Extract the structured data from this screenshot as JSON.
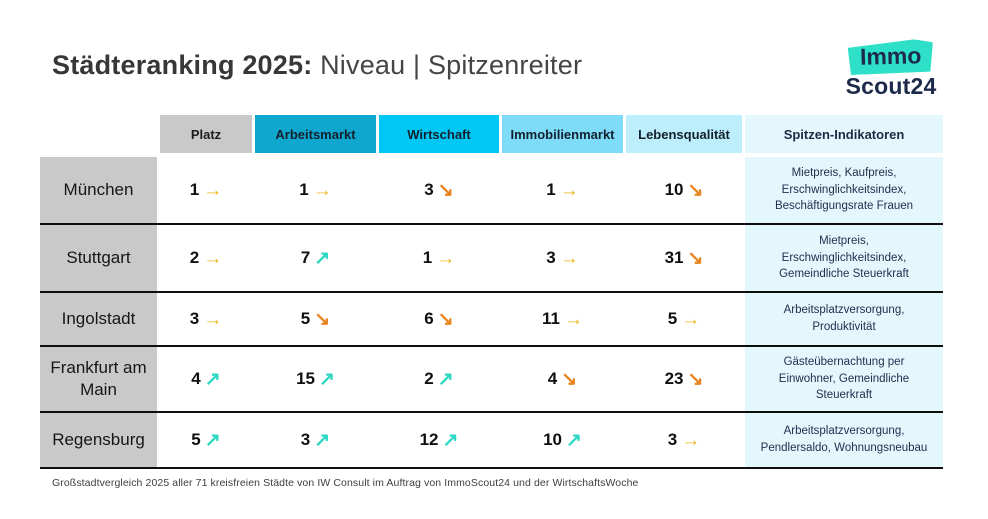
{
  "title": {
    "bold": "Städteranking 2025:",
    "regular": " Niveau | Spitzenreiter"
  },
  "logo": {
    "immo": "Immo",
    "scout": "Scout24",
    "teal": "#2fe0c8",
    "navy": "#1d2a4a"
  },
  "colors": {
    "header_platz_bg": "#c9c9c9",
    "header_arbeitsmarkt_bg": "#0fa7cd",
    "header_wirtschaft_bg": "#00c7f4",
    "header_immobilienmarkt_bg": "#7edcf8",
    "header_lebensqualitaet_bg": "#bdeefb",
    "spitzen_column_bg": "#e3f7fd",
    "city_column_bg": "#c9c9c9",
    "arrow_up": "#2ed7c2",
    "arrow_right": "#eab61e",
    "arrow_down": "#e8831f",
    "row_divider": "#0e0e0e"
  },
  "chart_data": {
    "type": "table",
    "title": "Städteranking 2025: Niveau | Spitzenreiter",
    "headers": [
      "Platz",
      "Arbeitsmarkt",
      "Wirtschaft",
      "Immobilienmarkt",
      "Lebensqualität",
      "Spitzen-Indikatoren"
    ],
    "trend_key": {
      "up": "↗",
      "right": "→",
      "down": "↘"
    },
    "rows": [
      {
        "city": "München",
        "cells": [
          {
            "value": 1,
            "trend": "right"
          },
          {
            "value": 1,
            "trend": "right"
          },
          {
            "value": 3,
            "trend": "down"
          },
          {
            "value": 1,
            "trend": "right"
          },
          {
            "value": 10,
            "trend": "down"
          }
        ],
        "indicators": "Mietpreis, Kaufpreis, Erschwinglichkeitsindex, Beschäftigungsrate Frauen"
      },
      {
        "city": "Stuttgart",
        "cells": [
          {
            "value": 2,
            "trend": "right"
          },
          {
            "value": 7,
            "trend": "up"
          },
          {
            "value": 1,
            "trend": "right"
          },
          {
            "value": 3,
            "trend": "right"
          },
          {
            "value": 31,
            "trend": "down"
          }
        ],
        "indicators": "Mietpreis, Erschwinglichkeitsindex, Gemeindliche Steuerkraft"
      },
      {
        "city": "Ingolstadt",
        "cells": [
          {
            "value": 3,
            "trend": "right"
          },
          {
            "value": 5,
            "trend": "down"
          },
          {
            "value": 6,
            "trend": "down"
          },
          {
            "value": 11,
            "trend": "right"
          },
          {
            "value": 5,
            "trend": "right"
          }
        ],
        "indicators": "Arbeitsplatzversorgung, Produktivität"
      },
      {
        "city": "Frankfurt am Main",
        "cells": [
          {
            "value": 4,
            "trend": "up"
          },
          {
            "value": 15,
            "trend": "up"
          },
          {
            "value": 2,
            "trend": "up"
          },
          {
            "value": 4,
            "trend": "down"
          },
          {
            "value": 23,
            "trend": "down"
          }
        ],
        "indicators": "Gästeübernachtung per Einwohner, Gemeindliche Steuerkraft"
      },
      {
        "city": "Regensburg",
        "cells": [
          {
            "value": 5,
            "trend": "up"
          },
          {
            "value": 3,
            "trend": "up"
          },
          {
            "value": 12,
            "trend": "up"
          },
          {
            "value": 10,
            "trend": "up"
          },
          {
            "value": 3,
            "trend": "right"
          }
        ],
        "indicators": "Arbeitsplatzversorgung, Pendlersaldo, Wohnungsneubau"
      }
    ]
  },
  "footer": "Großstadtvergleich 2025 aller 71 kreisfreien Städte von IW Consult im Auftrag von ImmoScout24 und der WirtschaftsWoche"
}
